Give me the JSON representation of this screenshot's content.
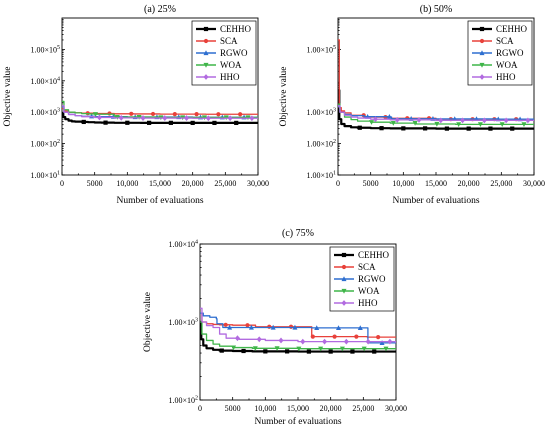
{
  "chart_data": [
    {
      "type": "line",
      "title": "(a) 25%",
      "xlabel": "Number of evaluations",
      "ylabel": "Objective value",
      "xlim": [
        0,
        30000
      ],
      "ylim": [
        10,
        1000000
      ],
      "yscale": "log",
      "xticks": [
        0,
        5000,
        10000,
        15000,
        20000,
        25000,
        30000
      ],
      "xtick_labels": [
        "0",
        "5000",
        "10,000",
        "15,000",
        "20,000",
        "25,000",
        "30,000"
      ],
      "yticks": [
        10,
        100,
        1000,
        10000,
        100000
      ],
      "ytick_labels": [
        "1.00×10¹",
        "1.00×10²",
        "1.00×10³",
        "1.00×10⁴",
        "1.00×10⁵"
      ],
      "legend_position": "top-right",
      "series": [
        {
          "name": "CEHHO",
          "color": "#000000",
          "marker": "square",
          "x": [
            0,
            200,
            500,
            1000,
            1500,
            2000,
            3000,
            4000,
            5000,
            6000,
            8000,
            12000,
            20000,
            30000
          ],
          "y": [
            900,
            700,
            600,
            540,
            510,
            500,
            490,
            480,
            470,
            465,
            460,
            458,
            456,
            455
          ]
        },
        {
          "name": "SCA",
          "color": "#e8413a",
          "marker": "circle",
          "x": [
            0,
            300,
            1000,
            2000,
            3000,
            5000,
            8000,
            11000,
            15000,
            22000,
            30000
          ],
          "y": [
            1300,
            1100,
            1000,
            960,
            930,
            910,
            890,
            880,
            870,
            860,
            860
          ]
        },
        {
          "name": "RGWO",
          "color": "#2e6fd0",
          "marker": "triangle-up",
          "x": [
            0,
            300,
            1000,
            2000,
            3000,
            5000,
            10000,
            20000,
            30000
          ],
          "y": [
            1500,
            1000,
            850,
            780,
            740,
            720,
            700,
            690,
            685
          ]
        },
        {
          "name": "WOA",
          "color": "#3fb549",
          "marker": "triangle-down",
          "x": [
            0,
            300,
            1000,
            2000,
            3000,
            4000,
            5000,
            8000,
            15000,
            30000
          ],
          "y": [
            2200,
            1200,
            1000,
            950,
            900,
            880,
            860,
            700,
            680,
            670
          ]
        },
        {
          "name": "HHO",
          "color": "#b26be0",
          "marker": "diamond",
          "x": [
            0,
            300,
            1000,
            2000,
            3000,
            5000,
            8000,
            12000,
            20000,
            30000
          ],
          "y": [
            1600,
            1000,
            850,
            780,
            720,
            680,
            660,
            650,
            640,
            635
          ]
        }
      ]
    },
    {
      "type": "line",
      "title": "(b) 50%",
      "xlabel": "Number of evaluations",
      "ylabel": "Objective value",
      "xlim": [
        0,
        30000
      ],
      "ylim": [
        10,
        1000000
      ],
      "yscale": "log",
      "xticks": [
        0,
        5000,
        10000,
        15000,
        20000,
        25000,
        30000
      ],
      "xtick_labels": [
        "0",
        "5000",
        "10,000",
        "15,000",
        "20,000",
        "25,000",
        "30,000"
      ],
      "yticks": [
        10,
        100,
        1000,
        100000
      ],
      "ytick_labels": [
        "1.00×10¹",
        "1.00×10²",
        "1.00×10³",
        "1.00×10⁵"
      ],
      "legend_position": "top-right",
      "series": [
        {
          "name": "CEHHO",
          "color": "#000000",
          "marker": "square",
          "x": [
            0,
            200,
            500,
            1000,
            2000,
            3000,
            5000,
            8000,
            15000,
            30000
          ],
          "y": [
            5000,
            600,
            420,
            360,
            330,
            320,
            310,
            305,
            300,
            300
          ]
        },
        {
          "name": "SCA",
          "color": "#e8413a",
          "marker": "circle",
          "x": [
            0,
            200,
            500,
            1000,
            2000,
            4000,
            8000,
            15000,
            30000
          ],
          "y": [
            200000,
            1400,
            1100,
            950,
            800,
            700,
            640,
            600,
            580
          ]
        },
        {
          "name": "RGWO",
          "color": "#2e6fd0",
          "marker": "triangle-up",
          "x": [
            0,
            300,
            1000,
            2000,
            4000,
            8000,
            8200,
            15000,
            24500,
            30000
          ],
          "y": [
            1500,
            1000,
            850,
            780,
            720,
            700,
            620,
            610,
            600,
            600
          ]
        },
        {
          "name": "WOA",
          "color": "#3fb549",
          "marker": "triangle-down",
          "x": [
            0,
            300,
            1000,
            2000,
            3000,
            5000,
            8000,
            12000,
            18000,
            30000
          ],
          "y": [
            1800,
            1000,
            700,
            580,
            520,
            480,
            450,
            420,
            410,
            400
          ]
        },
        {
          "name": "HHO",
          "color": "#b26be0",
          "marker": "diamond",
          "x": [
            0,
            300,
            1000,
            2000,
            3000,
            5000,
            8000,
            15000,
            30000
          ],
          "y": [
            1600,
            1000,
            800,
            700,
            650,
            600,
            570,
            550,
            540
          ]
        }
      ]
    },
    {
      "type": "line",
      "title": "(c) 75%",
      "xlabel": "Number of evaluations",
      "ylabel": "Objective value",
      "xlim": [
        0,
        30000
      ],
      "ylim": [
        100,
        10000
      ],
      "yscale": "log",
      "xticks": [
        0,
        5000,
        10000,
        15000,
        20000,
        25000,
        30000
      ],
      "xtick_labels": [
        "0",
        "5000",
        "10,000",
        "15,000",
        "20,000",
        "25,000",
        "30,000"
      ],
      "yticks": [
        100,
        1000,
        10000
      ],
      "ytick_labels": [
        "1.00×10²",
        "1.00×10³",
        "1.00×10⁴"
      ],
      "legend_position": "top-right",
      "series": [
        {
          "name": "CEHHO",
          "color": "#000000",
          "marker": "square",
          "x": [
            0,
            200,
            500,
            1000,
            2000,
            3000,
            5000,
            8000,
            15000,
            30000
          ],
          "y": [
            1000,
            600,
            500,
            460,
            440,
            430,
            425,
            420,
            418,
            415
          ]
        },
        {
          "name": "SCA",
          "color": "#e8413a",
          "marker": "circle",
          "x": [
            0,
            300,
            1000,
            2000,
            3000,
            5000,
            8000,
            8500,
            17000,
            17100,
            25500,
            25600,
            30000
          ],
          "y": [
            1300,
            1000,
            950,
            930,
            920,
            910,
            910,
            870,
            870,
            650,
            650,
            640,
            640
          ]
        },
        {
          "name": "RGWO",
          "color": "#2e6fd0",
          "marker": "triangle-up",
          "x": [
            0,
            500,
            1500,
            2500,
            2600,
            3500,
            17000,
            17100,
            25600,
            25700,
            30000
          ],
          "y": [
            1300,
            1200,
            1150,
            1100,
            950,
            850,
            850,
            840,
            840,
            540,
            540
          ]
        },
        {
          "name": "WOA",
          "color": "#3fb549",
          "marker": "triangle-down",
          "x": [
            0,
            300,
            1000,
            2000,
            3000,
            5000,
            8000,
            15000,
            30000
          ],
          "y": [
            1000,
            700,
            580,
            520,
            490,
            470,
            460,
            455,
            450
          ]
        },
        {
          "name": "HHO",
          "color": "#b26be0",
          "marker": "diamond",
          "x": [
            0,
            300,
            1000,
            2000,
            3000,
            4000,
            6000,
            10000,
            15000,
            30000
          ],
          "y": [
            1500,
            1000,
            900,
            850,
            700,
            620,
            600,
            580,
            560,
            540
          ]
        }
      ]
    }
  ]
}
